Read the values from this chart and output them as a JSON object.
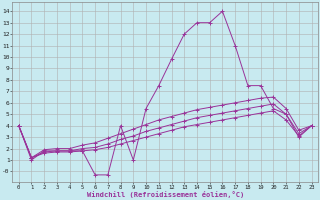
{
  "bg_color": "#c8eaf0",
  "grid_color": "#b0b0b0",
  "line_color": "#993399",
  "xlim": [
    -0.5,
    23.5
  ],
  "ylim": [
    -0.9,
    14.8
  ],
  "xlabel": "Windchill (Refroidissement éolien,°C)",
  "xticks": [
    0,
    1,
    2,
    3,
    4,
    5,
    6,
    7,
    8,
    9,
    10,
    11,
    12,
    13,
    14,
    15,
    16,
    17,
    18,
    19,
    20,
    21,
    22,
    23
  ],
  "yticks": [
    0,
    1,
    2,
    3,
    4,
    5,
    6,
    7,
    8,
    9,
    10,
    11,
    12,
    13,
    14
  ],
  "ytick_labels": [
    "-0",
    "1",
    "2",
    "3",
    "4",
    "5",
    "6",
    "7",
    "8",
    "9",
    "10",
    "11",
    "12",
    "13",
    "14"
  ],
  "s1_x": [
    0,
    1,
    2,
    3,
    4,
    5,
    6,
    7,
    8,
    9,
    10,
    11,
    12,
    13,
    14,
    15,
    16,
    17,
    18,
    19,
    20,
    21,
    22,
    23
  ],
  "s1_y": [
    4.0,
    1.0,
    1.8,
    1.8,
    1.8,
    1.8,
    -0.3,
    -0.3,
    4.0,
    1.0,
    5.5,
    7.5,
    9.8,
    12.0,
    13.0,
    13.0,
    14.0,
    11.0,
    7.5,
    7.5,
    5.5,
    5.0,
    3.0,
    4.0
  ],
  "s2_x": [
    0,
    1,
    2,
    3,
    4,
    5,
    6,
    7,
    8,
    9,
    10,
    11,
    12,
    13,
    14,
    15,
    16,
    17,
    18,
    19,
    20,
    21,
    22,
    23
  ],
  "s2_y": [
    4.0,
    1.2,
    1.6,
    1.7,
    1.7,
    1.8,
    1.9,
    2.1,
    2.4,
    2.7,
    3.0,
    3.3,
    3.6,
    3.9,
    4.1,
    4.3,
    4.5,
    4.7,
    4.9,
    5.1,
    5.3,
    4.5,
    3.1,
    4.0
  ],
  "s3_x": [
    0,
    1,
    2,
    3,
    4,
    5,
    6,
    7,
    8,
    9,
    10,
    11,
    12,
    13,
    14,
    15,
    16,
    17,
    18,
    19,
    20,
    21,
    22,
    23
  ],
  "s3_y": [
    4.0,
    1.2,
    1.7,
    1.8,
    1.8,
    2.0,
    2.1,
    2.4,
    2.8,
    3.1,
    3.5,
    3.8,
    4.1,
    4.4,
    4.7,
    4.9,
    5.1,
    5.3,
    5.5,
    5.7,
    5.9,
    5.0,
    3.3,
    4.0
  ],
  "s4_x": [
    0,
    1,
    2,
    3,
    4,
    5,
    6,
    7,
    8,
    9,
    10,
    11,
    12,
    13,
    14,
    15,
    16,
    17,
    18,
    19,
    20,
    21,
    22,
    23
  ],
  "s4_y": [
    4.0,
    1.2,
    1.9,
    2.0,
    2.0,
    2.3,
    2.5,
    2.9,
    3.3,
    3.7,
    4.1,
    4.5,
    4.8,
    5.1,
    5.4,
    5.6,
    5.8,
    6.0,
    6.2,
    6.4,
    6.5,
    5.5,
    3.6,
    4.0
  ]
}
